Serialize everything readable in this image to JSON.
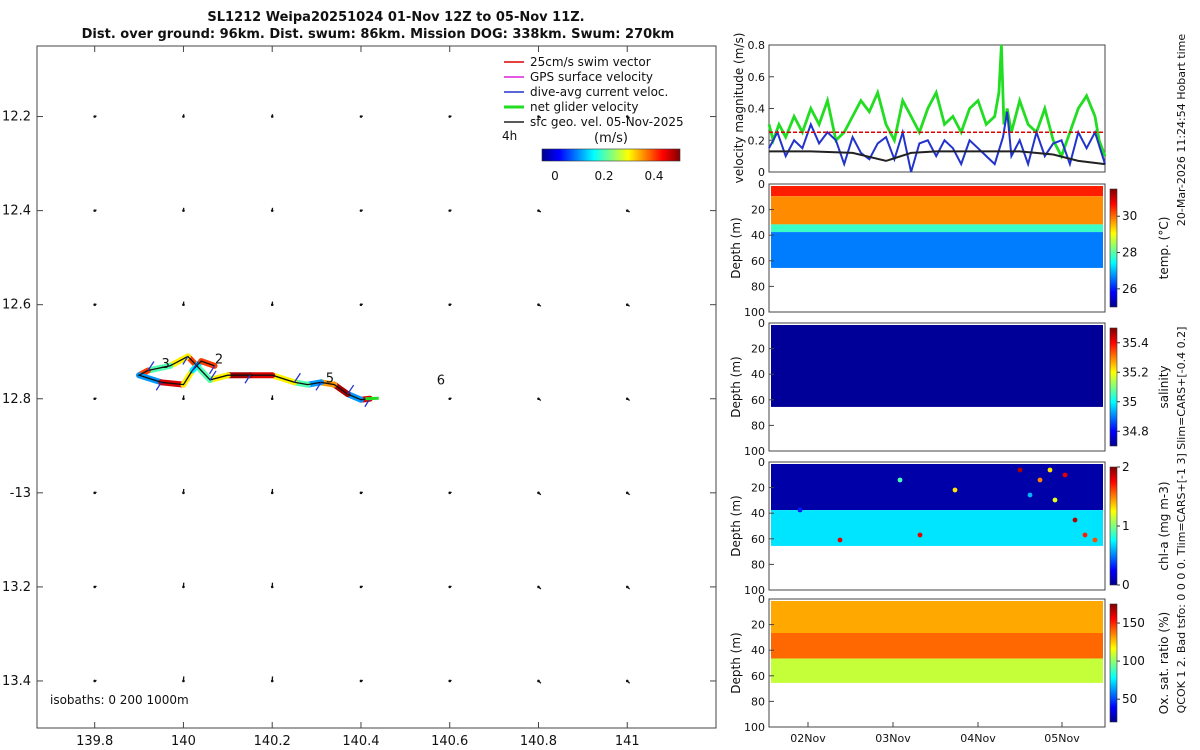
{
  "title_line1": "SL1212 Weipa20251024 01-Nov 12Z to 05-Nov 11Z.",
  "title_line2": "Dist. over ground: 96km. Dist. swum: 86km. Mission DOG: 338km. Swum: 270km",
  "side_label_1": "20-Mar-2026 11:24:54 Hobart time",
  "side_label_2": "QCOK 1  2. Bad tsfo: 0  0  0  0. Tlim=CARS+[-1 3] Slim=CARS+[-0.4 0.2]",
  "colors": {
    "velocity_green": "#22dd22",
    "velocity_blue": "#2233cc",
    "velocity_black": "#222222",
    "swim_red": "#dd0000",
    "gps_magenta": "#dd22dd"
  },
  "chart_data": [
    {
      "type": "scatter",
      "id": "map",
      "title": "Glider track map",
      "xlim": [
        139.67,
        141.2
      ],
      "ylim": [
        -13.5,
        -12.05
      ],
      "xticks": [
        139.8,
        140,
        140.2,
        140.4,
        140.6,
        140.8,
        141
      ],
      "xtick_labels": [
        "139.8",
        "140",
        "140.2",
        "140.4",
        "140.6",
        "140.8",
        "141"
      ],
      "yticks": [
        -12.2,
        -12.4,
        -12.6,
        -12.8,
        -13,
        -13.2,
        -13.4
      ],
      "ytick_labels": [
        "12.2",
        "12.4",
        "12.6",
        "12.8",
        "-13",
        "13.2",
        "13.4"
      ],
      "legend": [
        {
          "label": "25cm/s swim vector",
          "color": "#dd0000"
        },
        {
          "label": "GPS surface velocity",
          "color": "#dd22dd"
        },
        {
          "label": "dive-avg current veloc.",
          "color": "#2233cc"
        },
        {
          "label": "net glider velocity",
          "color": "#22dd22"
        },
        {
          "label": "sfc geo. vel. 05-Nov-2025",
          "color": "#222222"
        }
      ],
      "legend_note": "4h",
      "colorbar_title": "(m/s)",
      "colorbar_ticks": [
        "0",
        "0.2",
        "0.4"
      ],
      "colorbar_range": [
        -0.05,
        0.5
      ],
      "isobaths_label": "isobaths: 0   200  1000m",
      "track": {
        "lon": [
          140.42,
          140.4,
          140.37,
          140.34,
          140.31,
          140.28,
          140.25,
          140.2,
          140.15,
          140.1,
          140.06,
          140.03,
          140.01,
          139.97,
          139.92,
          139.9,
          139.95,
          140.0,
          140.02,
          140.04,
          140.07
        ],
        "lat": [
          -12.8,
          -12.802,
          -12.79,
          -12.77,
          -12.765,
          -12.77,
          -12.765,
          -12.75,
          -12.75,
          -12.75,
          -12.76,
          -12.73,
          -12.71,
          -12.73,
          -12.74,
          -12.75,
          -12.765,
          -12.77,
          -12.74,
          -12.72,
          -12.73
        ],
        "speed": [
          0.45,
          0.1,
          0.48,
          0.35,
          0.1,
          0.2,
          0.3,
          0.45,
          0.48,
          0.3,
          0.2,
          0.4,
          0.3,
          0.2,
          0.4,
          0.1,
          0.45,
          0.3,
          0.15,
          0.4,
          0.3
        ]
      },
      "day_labels": [
        {
          "text": "2",
          "lon": 140.08,
          "lat": -12.725
        },
        {
          "text": "3",
          "lon": 139.96,
          "lat": -12.735
        },
        {
          "text": "5",
          "lon": 140.33,
          "lat": -12.765
        },
        {
          "text": "6",
          "lon": 140.58,
          "lat": -12.77
        }
      ],
      "geo_vectors": {
        "lon": [
          139.8,
          140.0,
          140.2,
          140.4,
          140.6,
          140.8,
          141.0
        ],
        "lat": [
          -12.2,
          -12.4,
          -12.6,
          -12.8,
          -13.0,
          -13.2,
          -13.4
        ]
      }
    },
    {
      "type": "line",
      "id": "velocity",
      "ylabel": "velocity magnitude (m/s)",
      "ylim": [
        0,
        0.8
      ],
      "yticks": [
        0,
        0.2,
        0.4,
        0.6,
        0.8
      ],
      "ytick_labels": [
        "0",
        "0.2",
        "0.4",
        "0.6",
        "0.8"
      ],
      "xlim": [
        1.5,
        5.52
      ],
      "series": [
        {
          "name": "net glider velocity",
          "color": "#22dd22",
          "x": [
            1.5,
            1.55,
            1.62,
            1.7,
            1.8,
            1.9,
            2.0,
            2.1,
            2.2,
            2.3,
            2.4,
            2.5,
            2.6,
            2.7,
            2.8,
            2.9,
            3.0,
            3.1,
            3.2,
            3.3,
            3.4,
            3.5,
            3.6,
            3.7,
            3.8,
            3.9,
            4.0,
            4.1,
            4.2,
            4.25,
            4.28,
            4.31,
            4.35,
            4.4,
            4.5,
            4.6,
            4.7,
            4.8,
            4.9,
            5.0,
            5.1,
            5.2,
            5.3,
            5.4,
            5.45,
            5.52
          ],
          "values": [
            0.3,
            0.2,
            0.3,
            0.22,
            0.35,
            0.25,
            0.4,
            0.3,
            0.45,
            0.2,
            0.25,
            0.35,
            0.45,
            0.38,
            0.5,
            0.3,
            0.2,
            0.45,
            0.35,
            0.25,
            0.4,
            0.5,
            0.3,
            0.35,
            0.25,
            0.4,
            0.45,
            0.3,
            0.35,
            0.5,
            0.8,
            0.3,
            0.4,
            0.25,
            0.45,
            0.3,
            0.25,
            0.4,
            0.2,
            0.1,
            0.25,
            0.4,
            0.48,
            0.35,
            0.2,
            0.1
          ]
        },
        {
          "name": "dive-avg current veloc.",
          "color": "#2233cc",
          "x": [
            1.5,
            1.6,
            1.7,
            1.8,
            1.9,
            2.0,
            2.1,
            2.2,
            2.3,
            2.4,
            2.5,
            2.6,
            2.7,
            2.8,
            2.9,
            3.0,
            3.1,
            3.2,
            3.3,
            3.4,
            3.5,
            3.6,
            3.7,
            3.8,
            3.9,
            4.0,
            4.1,
            4.2,
            4.3,
            4.35,
            4.4,
            4.5,
            4.6,
            4.7,
            4.8,
            4.9,
            5.0,
            5.1,
            5.2,
            5.3,
            5.4,
            5.52
          ],
          "values": [
            0.15,
            0.25,
            0.1,
            0.2,
            0.15,
            0.3,
            0.18,
            0.25,
            0.2,
            0.05,
            0.22,
            0.12,
            0.08,
            0.18,
            0.22,
            0.08,
            0.25,
            0.0,
            0.18,
            0.2,
            0.1,
            0.2,
            0.15,
            0.05,
            0.2,
            0.15,
            0.1,
            0.05,
            0.22,
            0.38,
            0.1,
            0.2,
            0.05,
            0.25,
            0.1,
            0.18,
            0.2,
            0.05,
            0.25,
            0.15,
            0.25,
            0.05
          ]
        },
        {
          "name": "sfc geo. vel.",
          "color": "#222222",
          "x": [
            1.5,
            2.0,
            2.5,
            2.9,
            3.2,
            3.5,
            4.0,
            4.5,
            4.9,
            5.2,
            5.52
          ],
          "values": [
            0.13,
            0.13,
            0.12,
            0.07,
            0.12,
            0.13,
            0.13,
            0.13,
            0.11,
            0.07,
            0.05
          ]
        },
        {
          "name": "25cm/s swim vector",
          "color": "#dd0000",
          "x": [
            1.5,
            5.52
          ],
          "values": [
            0.25,
            0.25
          ]
        }
      ]
    },
    {
      "type": "heatmap",
      "id": "temperature",
      "ylabel": "Depth (m)",
      "colorbar_label": "temp. (°C)",
      "colorbar_ticks": [
        "26",
        "28",
        "30"
      ],
      "clim": [
        25,
        31.5
      ],
      "ylim": [
        0,
        100
      ],
      "yticks": [
        "0",
        "20",
        "40",
        "60",
        "80",
        "100"
      ],
      "layers": [
        {
          "top": 0,
          "bottom": 8,
          "value": 30.5
        },
        {
          "top": 8,
          "bottom": 30,
          "value": 29.8
        },
        {
          "top": 30,
          "bottom": 36,
          "value": 27.8
        },
        {
          "top": 36,
          "bottom": 64,
          "value": 26.6
        }
      ]
    },
    {
      "type": "heatmap",
      "id": "salinity",
      "ylabel": "Depth (m)",
      "colorbar_label": "salinity",
      "colorbar_ticks": [
        "34.8",
        "35",
        "35.2",
        "35.4"
      ],
      "clim": [
        34.7,
        35.5
      ],
      "ylim": [
        0,
        100
      ],
      "yticks": [
        "0",
        "20",
        "40",
        "60",
        "80",
        "100"
      ],
      "layers": [
        {
          "top": 0,
          "bottom": 64,
          "value": 34.72
        }
      ]
    },
    {
      "type": "heatmap",
      "id": "chlorophyll",
      "ylabel": "Depth (m)",
      "colorbar_label": "chl-a (mg m-3)",
      "colorbar_ticks": [
        "0",
        "1",
        "2"
      ],
      "clim": [
        0,
        2
      ],
      "ylim": [
        0,
        100
      ],
      "yticks": [
        "0",
        "20",
        "40",
        "60",
        "80",
        "100"
      ],
      "layers": [
        {
          "top": 0,
          "bottom": 36,
          "value": 0.08
        },
        {
          "top": 36,
          "bottom": 64,
          "value": 0.7
        }
      ]
    },
    {
      "type": "heatmap",
      "id": "oxygen",
      "ylabel": "Depth (m)",
      "colorbar_label": "Ox. sat. ratio (%)",
      "colorbar_ticks": [
        "50",
        "100",
        "150"
      ],
      "clim": [
        20,
        175
      ],
      "ylim": [
        0,
        100
      ],
      "yticks": [
        "0",
        "20",
        "40",
        "60",
        "80",
        "100"
      ],
      "xtick_labels": [
        "02Nov",
        "03Nov",
        "04Nov",
        "05Nov"
      ],
      "layers": [
        {
          "top": 0,
          "bottom": 25,
          "value": 130
        },
        {
          "top": 25,
          "bottom": 45,
          "value": 140
        },
        {
          "top": 45,
          "bottom": 64,
          "value": 108
        }
      ]
    }
  ]
}
